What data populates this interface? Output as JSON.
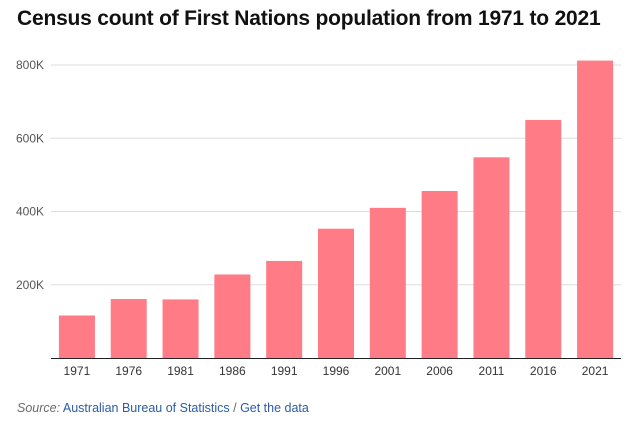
{
  "title": "Census count of First Nations population from 1971 to 2021",
  "source": {
    "label": "Source:",
    "link_text": "Australian Bureau of Statistics",
    "separator": " / ",
    "data_link": "Get the data"
  },
  "colors": {
    "bar": "#ff7b85",
    "grid": "#dddddd",
    "axis": "#222222",
    "tick_text": "#555555"
  },
  "chart_data": {
    "type": "bar",
    "title": "Census count of First Nations population from 1971 to 2021",
    "xlabel": "",
    "ylabel": "",
    "categories": [
      "1971",
      "1976",
      "1981",
      "1986",
      "1991",
      "1996",
      "2001",
      "2006",
      "2011",
      "2016",
      "2021"
    ],
    "values": [
      116000,
      161000,
      160000,
      228000,
      265000,
      353000,
      410000,
      456000,
      548000,
      650000,
      812000
    ],
    "ylim": [
      0,
      850000
    ],
    "yticks": [
      200000,
      400000,
      600000,
      800000
    ],
    "ytick_labels": [
      "200K",
      "400K",
      "600K",
      "800K"
    ],
    "grid": true
  }
}
